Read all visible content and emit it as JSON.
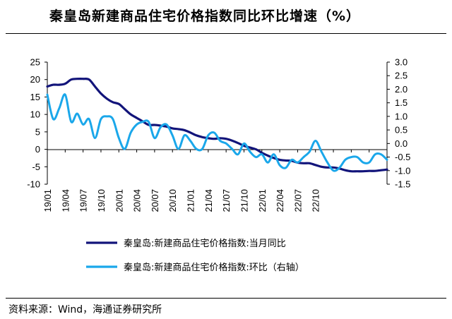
{
  "title": "秦皇岛新建商品住宅价格指数同比环比增速（%）",
  "source": "资料来源：Wind，海通证券研究所",
  "chart_data": {
    "type": "line",
    "x_tick_labels": [
      "19/01",
      "19/04",
      "19/07",
      "19/10",
      "20/01",
      "20/04",
      "20/07",
      "20/10",
      "21/01",
      "21/04",
      "21/07",
      "21/10",
      "22/01",
      "22/04",
      "22/07",
      "22/10"
    ],
    "y_left": {
      "range": [
        -10,
        25
      ],
      "ticks": [
        -10,
        -5,
        0,
        5,
        10,
        15,
        20,
        25
      ]
    },
    "y_right": {
      "range": [
        -1.5,
        3.0
      ],
      "ticks": [
        "-1.5",
        "-1.0",
        "-0.5",
        "0.0",
        "0.5",
        "1.0",
        "1.5",
        "2.0",
        "2.5",
        "3.0"
      ]
    },
    "legend_position": "bottom",
    "series": [
      {
        "name": "秦皇岛:新建商品住宅价格指数:当月同比",
        "axis": "left",
        "color": "#12147a",
        "values": [
          18.0,
          18.5,
          18.5,
          18.8,
          20.0,
          20.2,
          20.2,
          20.0,
          18.0,
          16.0,
          14.5,
          13.5,
          13.0,
          11.5,
          10.0,
          9.0,
          8.0,
          7.0,
          7.0,
          6.8,
          6.5,
          6.0,
          5.8,
          5.5,
          4.8,
          4.0,
          3.5,
          3.2,
          3.0,
          3.2,
          3.0,
          2.5,
          1.8,
          1.0,
          0.5,
          0.0,
          -1.0,
          -1.8,
          -2.5,
          -3.0,
          -3.2,
          -3.3,
          -3.8,
          -4.0,
          -4.0,
          -4.5,
          -5.0,
          -5.2,
          -5.2,
          -5.5,
          -6.0,
          -6.3,
          -6.3,
          -6.3,
          -6.2,
          -6.2,
          -6.0,
          -5.8
        ]
      },
      {
        "name": "秦皇岛:新建商品住宅价格指数:环比（右轴）",
        "axis": "right",
        "color": "#1aa7ea",
        "values": [
          1.8,
          0.9,
          1.3,
          1.8,
          0.8,
          1.1,
          0.7,
          0.9,
          0.2,
          0.9,
          1.0,
          0.9,
          0.2,
          -0.2,
          0.4,
          0.7,
          0.8,
          0.8,
          0.2,
          0.6,
          0.7,
          0.3,
          -0.2,
          0.3,
          0.1,
          -0.2,
          -0.2,
          0.3,
          0.4,
          0.1,
          0.0,
          -0.2,
          -0.4,
          0.0,
          -0.3,
          -0.5,
          -0.4,
          -0.7,
          -0.4,
          -0.8,
          -0.9,
          -0.6,
          -0.7,
          -0.5,
          -0.3,
          0.1,
          -0.3,
          -0.7,
          -1.0,
          -0.9,
          -0.6,
          -0.5,
          -0.5,
          -0.7,
          -0.7,
          -0.4,
          -0.4,
          -0.6
        ]
      }
    ]
  }
}
